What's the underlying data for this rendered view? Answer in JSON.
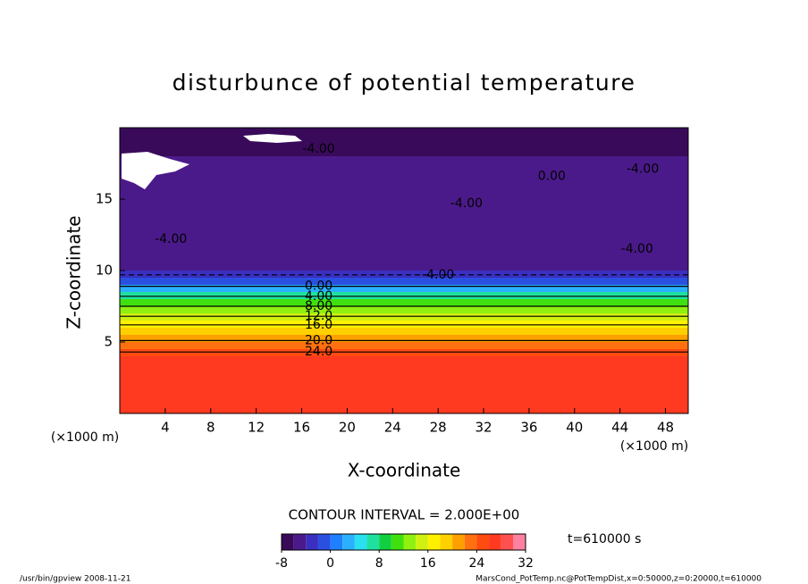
{
  "chart_data": {
    "type": "contour",
    "title": "disturbunce of potential temperature",
    "x_label": "X-coordinate",
    "y_label": "Z-coordinate",
    "x_unit": "(×1000 m)",
    "y_unit": "(×1000 m)",
    "xlim": [
      0,
      50
    ],
    "ylim": [
      0,
      20
    ],
    "xticks": [
      4,
      8,
      12,
      16,
      20,
      24,
      28,
      32,
      36,
      40,
      44,
      48
    ],
    "yticks": [
      5,
      10,
      15
    ],
    "z_bins": [
      0,
      4,
      4.5,
      5,
      5.5,
      6,
      6.5,
      7,
      7.5,
      8,
      8.5,
      9,
      9.5,
      10,
      12,
      14,
      16,
      18,
      20
    ],
    "values": [
      27,
      24,
      22,
      20,
      18,
      16,
      14,
      12,
      10,
      6,
      2,
      -2,
      -4,
      -5,
      -5,
      -6,
      -6,
      -7
    ],
    "levels": [
      -8,
      -6,
      -4,
      -2,
      0,
      2,
      4,
      6,
      8,
      10,
      12,
      14,
      16,
      18,
      20,
      22,
      24,
      26,
      28,
      30,
      32
    ],
    "colors": [
      "#3a0a5a",
      "#4b1a8a",
      "#3a2fc0",
      "#2a50e0",
      "#1e7fff",
      "#2ab0ff",
      "#28e0f0",
      "#20e0a0",
      "#10d040",
      "#40e010",
      "#90f010",
      "#d0f010",
      "#fff000",
      "#ffd000",
      "#ffa000",
      "#ff7010",
      "#ff4a10",
      "#ff3a20",
      "#ff5050",
      "#ff80a0"
    ],
    "contour_lines": [
      {
        "level": -4,
        "label": "-4.00",
        "x": 28,
        "z": 9.7
      },
      {
        "level": 0,
        "label": "0.00",
        "x": 17.5,
        "z": 8.9
      },
      {
        "level": 4,
        "label": "4.00",
        "x": 17.5,
        "z": 8.2
      },
      {
        "level": 8,
        "label": "8.00",
        "x": 17.5,
        "z": 7.5
      },
      {
        "level": 12,
        "label": "12.0",
        "x": 17.5,
        "z": 6.8
      },
      {
        "level": 16,
        "label": "16.0",
        "x": 17.5,
        "z": 6.2
      },
      {
        "level": 20,
        "label": "20.0",
        "x": 17.5,
        "z": 5.1
      },
      {
        "level": 24,
        "label": "24.0",
        "x": 17.5,
        "z": 4.3
      }
    ],
    "extra_labels": [
      {
        "label": "-4.00",
        "x": 17.5,
        "z": 18.5
      },
      {
        "label": "-4.00",
        "x": 4.5,
        "z": 12.2
      },
      {
        "label": "-4.00",
        "x": 30.5,
        "z": 14.7
      },
      {
        "label": "-4.00",
        "x": 46,
        "z": 17.1
      },
      {
        "label": "-4.00",
        "x": 45.5,
        "z": 11.5
      },
      {
        "label": "0.00",
        "x": 38,
        "z": 16.6
      }
    ],
    "contour_interval": "CONTOUR INTERVAL = 2.000E+00",
    "colorbar_ticks": [
      -8,
      0,
      8,
      16,
      24,
      32
    ],
    "time": "t=610000 s",
    "footer_left": "/usr/bin/gpview   2008-11-21",
    "footer_right": "MarsCond_PotTemp.nc@PotTempDist,x=0:50000,z=0:20000,t=610000"
  }
}
